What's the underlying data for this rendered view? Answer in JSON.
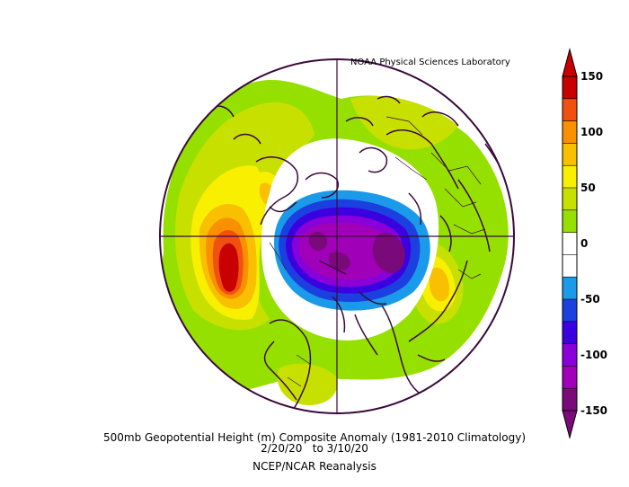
{
  "map": {
    "credit": "NOAA Physical Sciences Laboratory",
    "caption_line1": "500mb Geopotential Height (m) Composite Anomaly (1981-2010 Climatology)",
    "caption_line2": "2/20/20   to 3/10/20",
    "caption_line3": "NCEP/NCAR Reanalysis",
    "projection": "north-polar-stereographic",
    "colorbar": {
      "labels": [
        "150",
        "100",
        "50",
        "0",
        "-50",
        "-100",
        "-150"
      ],
      "colors": [
        "#7a0a7a",
        "#a000b8",
        "#8a00d8",
        "#3b00e0",
        "#1c3fe0",
        "#1a9ae8",
        "#ffffff",
        "#ffffff",
        "#96e000",
        "#c8e000",
        "#f8f000",
        "#f8c000",
        "#f89000",
        "#f05010",
        "#c80000"
      ],
      "anomaly_levels": [
        -150,
        -130,
        -110,
        -90,
        -70,
        -50,
        -30,
        -10,
        10,
        30,
        50,
        70,
        90,
        110,
        130,
        150
      ]
    }
  }
}
